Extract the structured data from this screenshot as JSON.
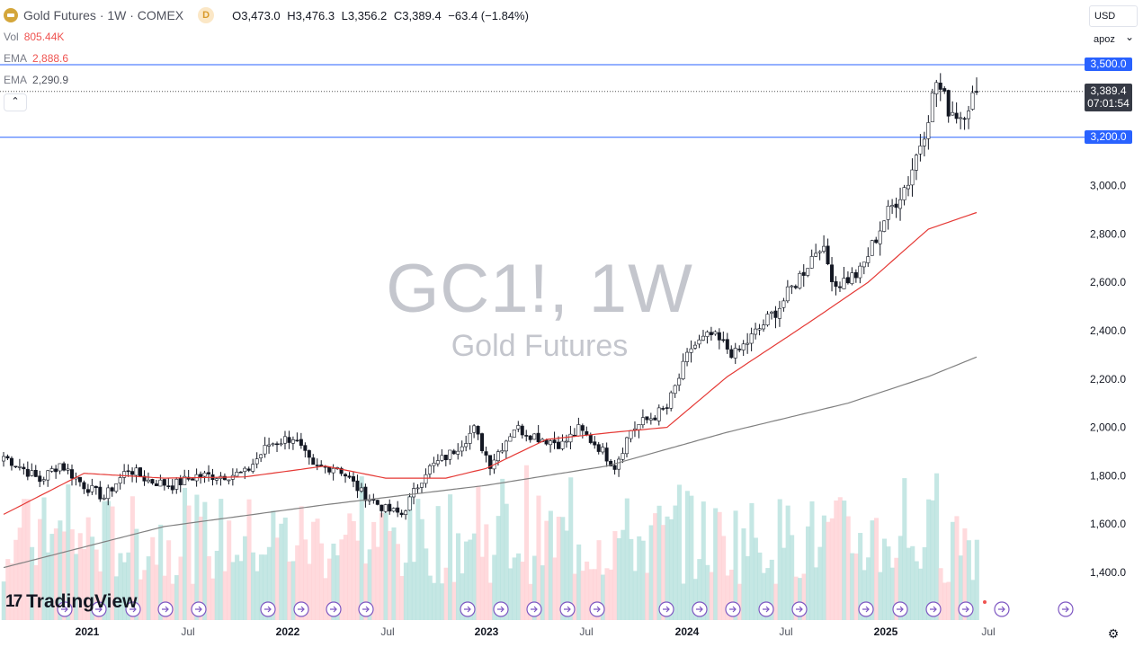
{
  "header": {
    "symbol_title": "Gold Futures · 1W · COMEX",
    "interval_badge": "D",
    "ohlc": {
      "o_label": "O",
      "o_value": "3,473.0",
      "h_label": "H",
      "h_value": "3,476.3",
      "l_label": "L",
      "l_value": "3,356.2",
      "c_label": "C",
      "c_value": "3,389.4",
      "change": "−63.4 (−1.84%)"
    }
  },
  "indicators": {
    "vol_label": "Vol",
    "vol_value": "805.44K",
    "ema1_label": "EMA",
    "ema1_value": "2,888.6",
    "ema2_label": "EMA",
    "ema2_value": "2,290.9",
    "collapse_glyph": "⌃"
  },
  "top_right": {
    "currency": "USD",
    "scale": "apoz"
  },
  "watermark": {
    "symbol": "GC1!, 1W",
    "name": "Gold Futures"
  },
  "price_tags": {
    "level_upper": "3,500.0",
    "last_price": "3,389.4",
    "countdown": "07:01:54",
    "level_lower": "3,200.0"
  },
  "branding": {
    "logo_text": "TradingView",
    "logo_mark": "17"
  },
  "icons": {
    "gear": "settings-icon"
  },
  "colors": {
    "up": "#26a69a",
    "down": "#ef5350",
    "ema_fast": "#e53935",
    "ema_slow": "#808080",
    "vol_up": "#b2dfdb",
    "vol_down": "#ffcdd2",
    "level_line": "#2962ff",
    "event_circle": "#7e57c2"
  },
  "chart_data": {
    "type": "candlestick",
    "y_axis_ticks": [
      "1,400.0",
      "1,600.0",
      "1,800.0",
      "2,000.0",
      "2,200.0",
      "2,400.0",
      "2,600.0",
      "2,800.0",
      "3,000.0"
    ],
    "ylim": [
      1280,
      3540
    ],
    "x_axis_labels": [
      "2021",
      "Jul",
      "2022",
      "Jul",
      "2023",
      "Jul",
      "2024",
      "Jul",
      "2025",
      "Jul"
    ],
    "horizontal_levels": [
      3500,
      3200
    ],
    "last_close": 3389.4,
    "anchors": {
      "start": "2020-11",
      "close_path": [
        [
          0,
          1880
        ],
        [
          4,
          1840
        ],
        [
          9,
          1780
        ],
        [
          14,
          1850
        ],
        [
          20,
          1760
        ],
        [
          25,
          1710
        ],
        [
          31,
          1830
        ],
        [
          36,
          1780
        ],
        [
          42,
          1760
        ],
        [
          48,
          1800
        ],
        [
          54,
          1800
        ],
        [
          60,
          1810
        ],
        [
          66,
          1930
        ],
        [
          72,
          1960
        ],
        [
          77,
          1830
        ],
        [
          83,
          1840
        ],
        [
          89,
          1730
        ],
        [
          95,
          1660
        ],
        [
          99,
          1640
        ],
        [
          105,
          1820
        ],
        [
          111,
          1890
        ],
        [
          117,
          1990
        ],
        [
          121,
          1850
        ],
        [
          127,
          2000
        ],
        [
          133,
          1960
        ],
        [
          139,
          1930
        ],
        [
          143,
          1990
        ],
        [
          148,
          1920
        ],
        [
          152,
          1840
        ],
        [
          156,
          1990
        ],
        [
          161,
          2040
        ],
        [
          165,
          2080
        ],
        [
          171,
          2330
        ],
        [
          176,
          2380
        ],
        [
          182,
          2300
        ],
        [
          187,
          2390
        ],
        [
          193,
          2500
        ],
        [
          199,
          2650
        ],
        [
          203,
          2760
        ],
        [
          207,
          2590
        ],
        [
          213,
          2640
        ],
        [
          219,
          2860
        ],
        [
          225,
          3020
        ],
        [
          229,
          3230
        ],
        [
          232,
          3430
        ],
        [
          235,
          3320
        ],
        [
          238,
          3290
        ],
        [
          242,
          3390
        ]
      ],
      "ema_fast_path": [
        [
          0,
          1640
        ],
        [
          20,
          1810
        ],
        [
          40,
          1790
        ],
        [
          60,
          1795
        ],
        [
          80,
          1840
        ],
        [
          95,
          1790
        ],
        [
          110,
          1790
        ],
        [
          120,
          1830
        ],
        [
          135,
          1950
        ],
        [
          152,
          1980
        ],
        [
          165,
          2000
        ],
        [
          180,
          2210
        ],
        [
          200,
          2430
        ],
        [
          215,
          2600
        ],
        [
          230,
          2820
        ],
        [
          242,
          2888.6
        ]
      ],
      "ema_slow_path": [
        [
          0,
          1420
        ],
        [
          40,
          1590
        ],
        [
          80,
          1680
        ],
        [
          120,
          1760
        ],
        [
          150,
          1840
        ],
        [
          180,
          1980
        ],
        [
          210,
          2100
        ],
        [
          230,
          2210
        ],
        [
          242,
          2290.9
        ]
      ]
    },
    "series_count": 243,
    "volume_visible": true
  }
}
